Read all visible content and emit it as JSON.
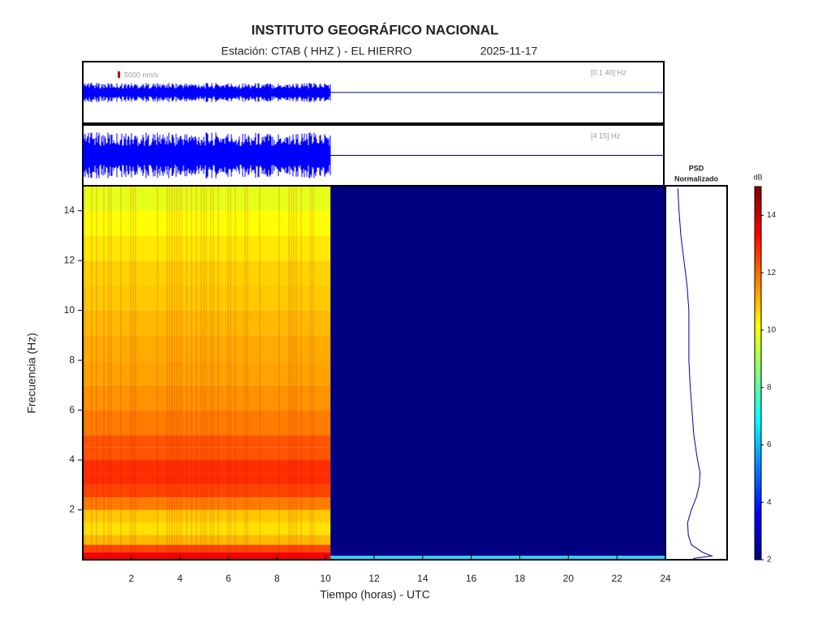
{
  "chart_data": {
    "type": "spectrogram",
    "title": "INSTITUTO GEOGRÁFICO NACIONAL",
    "subtitle": "Estación:  CTAB ( HHZ ) - EL HIERRO",
    "date": "2025-11-17",
    "x_label": "Tiempo (horas) - UTC",
    "y_label": "Frecuencia  (Hz)",
    "xlim": [
      0,
      24
    ],
    "xticks": [
      2,
      4,
      6,
      8,
      10,
      12,
      14,
      16,
      18,
      20,
      22,
      24
    ],
    "ylim": [
      0,
      15
    ],
    "yticks": [
      2,
      4,
      6,
      8,
      10,
      12,
      14
    ],
    "data_end": 10.2,
    "traces": [
      {
        "scale_label": "5000 nm/s",
        "band_label": "[0.1 40] Hz",
        "color": "#0000ff"
      },
      {
        "band_label": "[4 15] Hz",
        "color": "#0000ff"
      }
    ],
    "spectrogram": {
      "freq_edges": [
        0,
        0.3,
        0.6,
        1,
        1.5,
        2,
        2.5,
        3,
        3.5,
        4,
        4.5,
        5,
        6,
        7,
        8,
        9,
        10,
        11,
        12,
        13,
        14,
        15
      ],
      "db": [
        13.5,
        12.5,
        11,
        10.5,
        10.8,
        11.8,
        12.5,
        12.8,
        12.8,
        12.3,
        12.3,
        11.8,
        11.5,
        11.3,
        11.2,
        11,
        10.8,
        10.7,
        10.4,
        10.1,
        9.8
      ]
    },
    "psd": {
      "title": "PSD",
      "subtitle": "Normalizado",
      "color": "#0000aa",
      "xlim": [
        0,
        1
      ],
      "frequencies": [
        0.05,
        0.15,
        0.3,
        0.6,
        1,
        1.5,
        2,
        2.5,
        3,
        3.5,
        4,
        5,
        6,
        7,
        8,
        9,
        10,
        11,
        12,
        13,
        14,
        14.9
      ],
      "values": [
        0.45,
        0.75,
        0.6,
        0.42,
        0.37,
        0.36,
        0.42,
        0.5,
        0.55,
        0.56,
        0.52,
        0.46,
        0.43,
        0.4,
        0.38,
        0.38,
        0.38,
        0.35,
        0.3,
        0.25,
        0.22,
        0.2
      ]
    },
    "colorbar": {
      "label": "dB",
      "lim": [
        2,
        15
      ],
      "ticks": [
        2,
        4,
        6,
        8,
        10,
        12,
        14
      ]
    },
    "colormap": "jet"
  }
}
